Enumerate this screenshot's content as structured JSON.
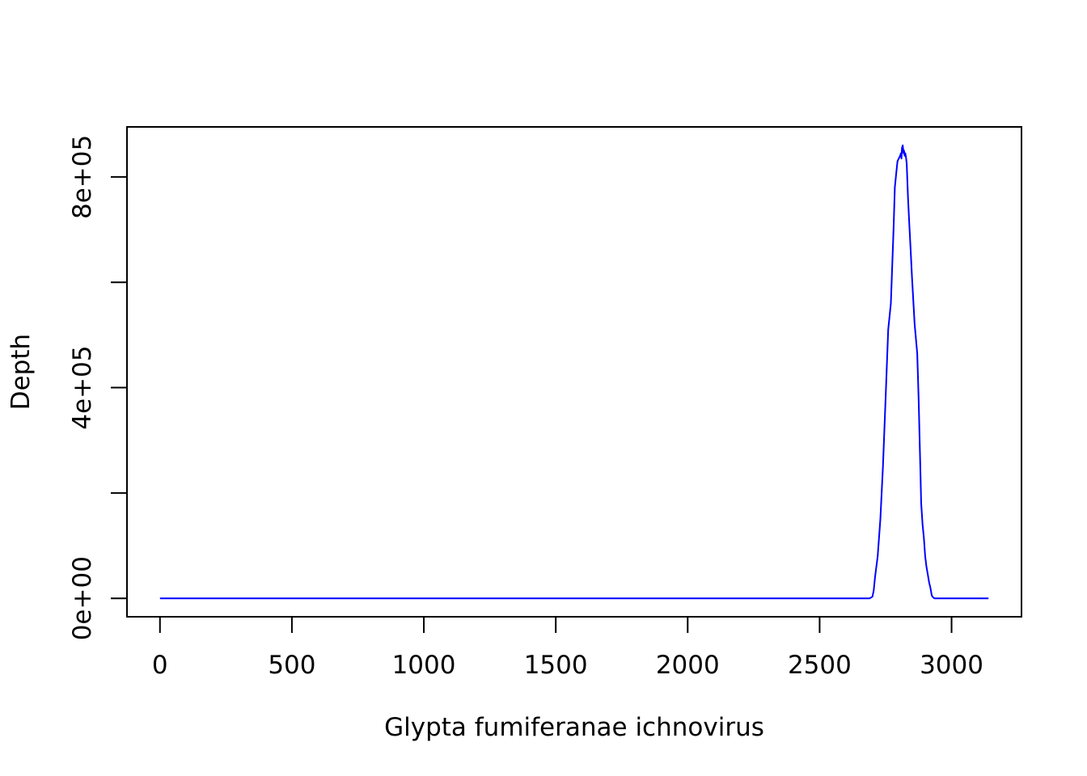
{
  "chart_data": {
    "type": "line",
    "title": "",
    "xlabel": "Glypta fumiferanae ichnovirus",
    "ylabel": "Depth",
    "xlim": [
      -125,
      3265
    ],
    "ylim": [
      -35000,
      895000
    ],
    "x_ticks": [
      0,
      500,
      1000,
      1500,
      2000,
      2500,
      3000
    ],
    "x_tick_labels": [
      "0",
      "500",
      "1000",
      "1500",
      "2000",
      "2500",
      "3000"
    ],
    "y_ticks": [
      0,
      200000,
      400000,
      600000,
      800000
    ],
    "y_tick_labels": [
      "0e+00",
      "",
      "4e+05",
      "",
      "8e+05"
    ],
    "grid": false,
    "series": [
      {
        "color": "#0000ff",
        "x": [
          0,
          500,
          1000,
          1500,
          2000,
          2500,
          2600,
          2690,
          2700,
          2705,
          2710,
          2720,
          2730,
          2740,
          2750,
          2760,
          2770,
          2780,
          2785,
          2790,
          2795,
          2800,
          2805,
          2808,
          2810,
          2812,
          2815,
          2818,
          2820,
          2822,
          2825,
          2828,
          2830,
          2832,
          2835,
          2840,
          2845,
          2850,
          2860,
          2870,
          2875,
          2880,
          2885,
          2890,
          2895,
          2900,
          2905,
          2910,
          2915,
          2920,
          2925,
          2930,
          2935,
          2940,
          2950,
          3000,
          3050,
          3100,
          3140
        ],
        "y": [
          0,
          0,
          0,
          0,
          0,
          0,
          0,
          0,
          3000,
          15000,
          40000,
          80000,
          150000,
          250000,
          380000,
          510000,
          560000,
          700000,
          780000,
          805000,
          830000,
          835000,
          840000,
          845000,
          835000,
          855000,
          860000,
          845000,
          850000,
          840000,
          845000,
          835000,
          825000,
          800000,
          760000,
          710000,
          660000,
          610000,
          520000,
          465000,
          380000,
          280000,
          180000,
          140000,
          115000,
          80000,
          60000,
          45000,
          30000,
          20000,
          5000,
          2000,
          0,
          0,
          0,
          0,
          0,
          0,
          0
        ]
      }
    ]
  }
}
